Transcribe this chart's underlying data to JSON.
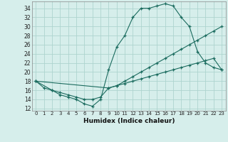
{
  "xlabel": "Humidex (Indice chaleur)",
  "bg_color": "#d6eeeb",
  "grid_color": "#aed4cf",
  "line_color": "#1a6b5e",
  "xlim": [
    -0.5,
    23.5
  ],
  "ylim": [
    11.5,
    35.5
  ],
  "xticks": [
    0,
    1,
    2,
    3,
    4,
    5,
    6,
    7,
    8,
    9,
    10,
    11,
    12,
    13,
    14,
    15,
    16,
    17,
    18,
    19,
    20,
    21,
    22,
    23
  ],
  "yticks": [
    12,
    14,
    16,
    18,
    20,
    22,
    24,
    26,
    28,
    30,
    32,
    34
  ],
  "line1_x": [
    0,
    1,
    2,
    3,
    4,
    5,
    6,
    7,
    8,
    9,
    10,
    11,
    12,
    13,
    14,
    15,
    16,
    17,
    18,
    19,
    20,
    21,
    22,
    23
  ],
  "line1_y": [
    18,
    16.5,
    16,
    15,
    14.5,
    14,
    13,
    12.5,
    14,
    20.5,
    25.5,
    28,
    32,
    34,
    34,
    34.5,
    35,
    34.5,
    32,
    30,
    24.5,
    22,
    21,
    20.5
  ],
  "line2_x": [
    0,
    2,
    3,
    4,
    5,
    6,
    7,
    8,
    9,
    10,
    11,
    12,
    13,
    14,
    15,
    16,
    17,
    18,
    19,
    20,
    21,
    22,
    23
  ],
  "line2_y": [
    18,
    16,
    15.5,
    15,
    14.5,
    14,
    14,
    14.5,
    16.5,
    17,
    18,
    19,
    20,
    21,
    22,
    23,
    24,
    25,
    26,
    27,
    28,
    29,
    30
  ],
  "line3_x": [
    0,
    9,
    10,
    11,
    12,
    13,
    14,
    15,
    16,
    17,
    18,
    19,
    20,
    21,
    22,
    23
  ],
  "line3_y": [
    18,
    16.5,
    17,
    17.5,
    18,
    18.5,
    19,
    19.5,
    20,
    20.5,
    21,
    21.5,
    22,
    22.5,
    23,
    20.5
  ]
}
